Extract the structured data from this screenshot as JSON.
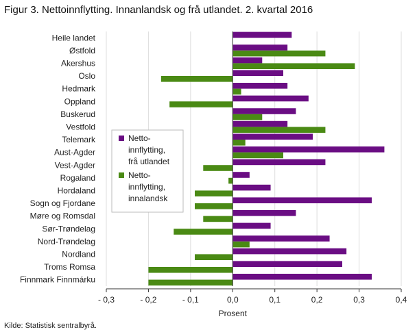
{
  "title": "Figur 3. Nettoinnflytting. Innanlandsk og frå utlandet. 2. kvartal 2016",
  "source": "Kilde: Statistisk sentralbyrå.",
  "colors": {
    "utland": "#6a0d83",
    "innland": "#4a8a14",
    "grid": "#dddddd",
    "axis": "#333333"
  },
  "chart_data": {
    "type": "bar",
    "orientation": "horizontal",
    "title": "Figur 3. Nettoinnflytting. Innanlandsk og frå utlandet. 2. kvartal 2016",
    "xlabel": "Prosent",
    "ylabel": "",
    "xlim": [
      -0.3,
      0.4
    ],
    "xticks": [
      -0.3,
      -0.2,
      -0.1,
      0.0,
      0.1,
      0.2,
      0.3,
      0.4
    ],
    "xtick_labels": [
      "- 0,3",
      "- 0,2",
      "- 0,1",
      "0,0",
      "0,1",
      "0,2",
      "0,3",
      "0,4"
    ],
    "grid": "vertical",
    "legend_position": "center-left",
    "categories": [
      "Heile landet",
      "Østfold",
      "Akershus",
      "Oslo",
      "Hedmark",
      "Oppland",
      "Buskerud",
      "Vestfold",
      "Telemark",
      "Aust-Agder",
      "Vest-Agder",
      "Rogaland",
      "Hordaland",
      "Sogn og Fjordane",
      "Møre og Romsdal",
      "Sør-Trøndelag",
      "Nord-Trøndelag",
      "Nordland",
      "Troms Romsa",
      "Finnmark Finnmárku"
    ],
    "series": [
      {
        "name": "Netto-innflytting, frå utlandet",
        "legend_lines": [
          "Netto-",
          "innflytting,",
          "frå utlandet"
        ],
        "color": "#6a0d83",
        "values": [
          0.14,
          0.13,
          0.07,
          0.12,
          0.13,
          0.18,
          0.15,
          0.13,
          0.19,
          0.36,
          0.22,
          0.04,
          0.09,
          0.33,
          0.15,
          0.09,
          0.23,
          0.27,
          0.26,
          0.33
        ]
      },
      {
        "name": "Netto-innflytting, innalandsk",
        "legend_lines": [
          "Netto-",
          "innflytting,",
          "innalandsk"
        ],
        "color": "#4a8a14",
        "values": [
          0.0,
          0.22,
          0.29,
          -0.17,
          0.02,
          -0.15,
          0.07,
          0.22,
          0.03,
          0.12,
          -0.07,
          -0.01,
          -0.09,
          -0.09,
          -0.07,
          -0.14,
          0.04,
          -0.09,
          -0.2,
          -0.2
        ]
      }
    ]
  }
}
